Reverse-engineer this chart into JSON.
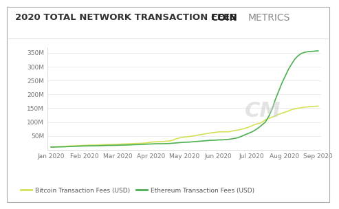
{
  "title": "2020 TOTAL NETWORK TRANSACTION FEES",
  "logo_text_coin": "COIN",
  "logo_text_metrics": "METRICS",
  "watermark": "CM",
  "background_color": "#ffffff",
  "plot_bg_color": "#ffffff",
  "border_color": "#cccccc",
  "yticks": [
    50000000,
    100000000,
    150000000,
    200000000,
    250000000,
    300000000,
    350000000
  ],
  "ytick_labels": [
    "50M",
    "100M",
    "150M",
    "200M",
    "250M",
    "300M",
    "350M"
  ],
  "xtick_labels": [
    "Jan 2020",
    "Feb 2020",
    "Mar 2020",
    "Apr 2020",
    "May 2020",
    "Jun 2020",
    "Jul 2020",
    "Aug 2020",
    "Sep 2020"
  ],
  "legend_btc": "Bitcoin Transaction Fees (USD)",
  "legend_eth": "Ethereum Transaction Fees (USD)",
  "btc_color": "#d4e157",
  "eth_color": "#4caf50",
  "title_fontsize": 9.5,
  "tick_fontsize": 6.5,
  "legend_fontsize": 6.5,
  "logo_coin_fontsize": 10,
  "logo_metrics_fontsize": 10,
  "btc_x": [
    0,
    1,
    2,
    3,
    4,
    5,
    6,
    7,
    8,
    9,
    10,
    11,
    12,
    13,
    14,
    15,
    16,
    17,
    18,
    19,
    20,
    21,
    22,
    23,
    24,
    25,
    26,
    27,
    28,
    29,
    30,
    31,
    32,
    33,
    34,
    35,
    36,
    37,
    38,
    39,
    40,
    41,
    42,
    43,
    44,
    45,
    46,
    47,
    48,
    49,
    50,
    51,
    52,
    53,
    54,
    55,
    56,
    57,
    58,
    59,
    60,
    61,
    62,
    63,
    64,
    65,
    66,
    67,
    68,
    69,
    70,
    71,
    72,
    73,
    74,
    75,
    76,
    77,
    78,
    79,
    80,
    81
  ],
  "btc_y": [
    10000000,
    10500000,
    11000000,
    11500000,
    12000000,
    13000000,
    14000000,
    14500000,
    15000000,
    15500000,
    16000000,
    16500000,
    17000000,
    17000000,
    17500000,
    18000000,
    18500000,
    19000000,
    19000000,
    19500000,
    20000000,
    20500000,
    21000000,
    21500000,
    22000000,
    22500000,
    23000000,
    23500000,
    24000000,
    25000000,
    27000000,
    28500000,
    29000000,
    29500000,
    30000000,
    31000000,
    32000000,
    35000000,
    40000000,
    43000000,
    45000000,
    47000000,
    48000000,
    50000000,
    52000000,
    54000000,
    56000000,
    58000000,
    60000000,
    62000000,
    63000000,
    65000000,
    65000000,
    65000000,
    65000000,
    68000000,
    70000000,
    72000000,
    75000000,
    78000000,
    82000000,
    87000000,
    92000000,
    95000000,
    100000000,
    108000000,
    113000000,
    118000000,
    122000000,
    128000000,
    132000000,
    136000000,
    140000000,
    145000000,
    148000000,
    150000000,
    152000000,
    154000000,
    155000000,
    156000000,
    157000000,
    157500000
  ],
  "eth_x": [
    0,
    1,
    2,
    3,
    4,
    5,
    6,
    7,
    8,
    9,
    10,
    11,
    12,
    13,
    14,
    15,
    16,
    17,
    18,
    19,
    20,
    21,
    22,
    23,
    24,
    25,
    26,
    27,
    28,
    29,
    30,
    31,
    32,
    33,
    34,
    35,
    36,
    37,
    38,
    39,
    40,
    41,
    42,
    43,
    44,
    45,
    46,
    47,
    48,
    49,
    50,
    51,
    52,
    53,
    54,
    55,
    56,
    57,
    58,
    59,
    60,
    61,
    62,
    63,
    64,
    65,
    66,
    67,
    68,
    69,
    70,
    71,
    72,
    73,
    74,
    75,
    76,
    77,
    78,
    79,
    80,
    81
  ],
  "eth_y": [
    10000000,
    10200000,
    10500000,
    10800000,
    11000000,
    11500000,
    12000000,
    12500000,
    13000000,
    13500000,
    14000000,
    14200000,
    14500000,
    14500000,
    14800000,
    15000000,
    15500000,
    16000000,
    16000000,
    16200000,
    16500000,
    17000000,
    17000000,
    17500000,
    18000000,
    18500000,
    19000000,
    19500000,
    20000000,
    20500000,
    21000000,
    21500000,
    22000000,
    22000000,
    22000000,
    22500000,
    23000000,
    24000000,
    25000000,
    26000000,
    27000000,
    27500000,
    28000000,
    29000000,
    30000000,
    31000000,
    32000000,
    33000000,
    34000000,
    34500000,
    35000000,
    36000000,
    36000000,
    37000000,
    38000000,
    40000000,
    42000000,
    45000000,
    50000000,
    55000000,
    60000000,
    65000000,
    72000000,
    80000000,
    90000000,
    100000000,
    120000000,
    145000000,
    180000000,
    210000000,
    240000000,
    265000000,
    290000000,
    310000000,
    328000000,
    340000000,
    348000000,
    352000000,
    354000000,
    355000000,
    356000000,
    357000000
  ],
  "xlim_min": -1,
  "xlim_max": 82,
  "ylim_min": 0,
  "ylim_max": 370000000,
  "outer_border_color": "#aaaaaa"
}
